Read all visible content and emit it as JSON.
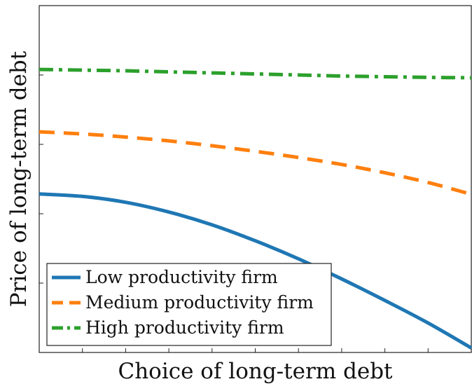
{
  "chart_data": {
    "type": "line",
    "title": "",
    "xlabel": "Choice of long-term debt",
    "ylabel": "Price of long-term debt",
    "xlim": [
      0,
      1
    ],
    "ylim": [
      0,
      1
    ],
    "x_tick_count": 10,
    "y_tick_count": 5,
    "x_ticks_labeled": false,
    "y_ticks_labeled": false,
    "grid": false,
    "legend_position": "bottom-left",
    "x": [
      0,
      0.1,
      0.2,
      0.3,
      0.4,
      0.5,
      0.6,
      0.7,
      0.8,
      0.9,
      1.0
    ],
    "series": [
      {
        "name": "Low productivity firm",
        "color": "#1f77b4",
        "line_style": "solid",
        "values": [
          0.457,
          0.45,
          0.433,
          0.405,
          0.368,
          0.322,
          0.27,
          0.212,
          0.15,
          0.085,
          0.013
        ]
      },
      {
        "name": "Medium productivity firm",
        "color": "#ff7f0e",
        "line_style": "dashed",
        "values": [
          0.636,
          0.63,
          0.621,
          0.61,
          0.596,
          0.58,
          0.562,
          0.542,
          0.518,
          0.49,
          0.456
        ]
      },
      {
        "name": "High productivity firm",
        "color": "#2ca02c",
        "line_style": "dashdot",
        "values": [
          0.816,
          0.814,
          0.812,
          0.809,
          0.806,
          0.803,
          0.8,
          0.797,
          0.795,
          0.793,
          0.792
        ]
      }
    ]
  }
}
